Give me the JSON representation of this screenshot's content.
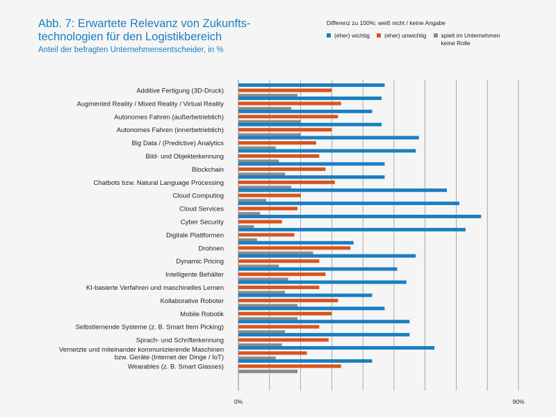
{
  "title_lines": [
    "Abb. 7: Erwartete Relevanz von Zukunfts-",
    "technologien für den Logistikbereich"
  ],
  "subtitle": "Anteil der befragten Unternehmensentscheider, in %",
  "legend_note": "Differenz zu 100%: weiß nicht / keine Angabe",
  "colors": {
    "background": "#f5f5f5",
    "gridline": "#888888",
    "wichtig": "#1a7fc1",
    "unwichtig": "#d9531e",
    "keine_rolle": "#8c8c8c"
  },
  "chart_data": {
    "type": "bar",
    "orientation": "horizontal",
    "xlim": [
      0,
      90
    ],
    "tick_labels": [
      "0%",
      "90%"
    ],
    "gridlines_every": 10,
    "legend_position": "top-right",
    "categories": [
      "Additive Fertigung (3D-Druck)",
      "Augmented Reality / Mixed Reality / Virtual Reality",
      "Autonomes Fahren (außerbetrieblich)",
      "Autonomes Fahren (innerbetrieblich)",
      "Big Data / (Predictive) Analytics",
      "Bild- und Objekterkennung",
      "Blockchain",
      "Chatbots bzw. Natural Language Processing",
      "Cloud Computing",
      "Cloud Services",
      "Cyber Security",
      "Digitale Plattformen",
      "Drohnen",
      "Dynamic Pricing",
      "Intelligente Behälter",
      "KI-basierte Verfahren und maschinelles Lernen",
      "Kollaborative Roboter",
      "Mobile Robotik",
      "Selbstlernende Systeme (z. B. Smart Item Picking)",
      "Sprach- und Schrifterkennung",
      "Vernetzte und miteinander kommunizierende Maschinen\nbzw. Geräte (Internet der Dinge / IoT)",
      "Wearables (z. B. Smart Glasses)"
    ],
    "series": [
      {
        "name": "(eher) wichtig",
        "values": [
          47,
          46,
          43,
          46,
          58,
          57,
          47,
          47,
          67,
          71,
          78,
          73,
          37,
          57,
          51,
          54,
          43,
          47,
          55,
          55,
          63,
          43
        ]
      },
      {
        "name": "(eher) unwichtig",
        "values": [
          30,
          33,
          32,
          30,
          25,
          26,
          28,
          31,
          20,
          19,
          14,
          18,
          36,
          26,
          28,
          26,
          32,
          30,
          26,
          29,
          22,
          33
        ]
      },
      {
        "name": "spielt im Unternehmen\nkeine Rolle",
        "values": [
          19,
          17,
          20,
          20,
          12,
          13,
          15,
          17,
          9,
          7,
          5,
          6,
          24,
          13,
          16,
          15,
          19,
          19,
          15,
          14,
          12,
          19
        ]
      }
    ]
  }
}
